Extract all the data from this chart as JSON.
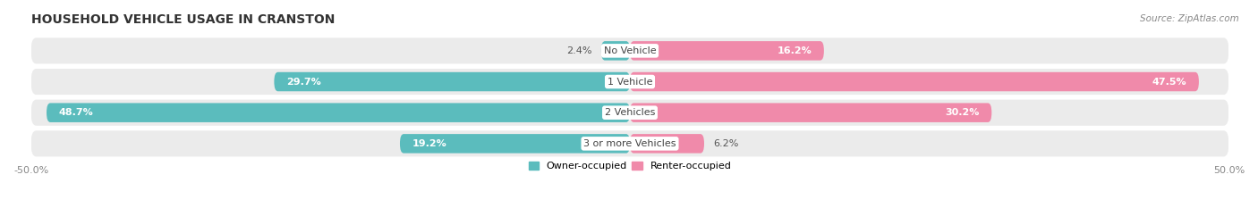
{
  "title": "HOUSEHOLD VEHICLE USAGE IN CRANSTON",
  "source": "Source: ZipAtlas.com",
  "categories": [
    "No Vehicle",
    "1 Vehicle",
    "2 Vehicles",
    "3 or more Vehicles"
  ],
  "owner_values": [
    2.4,
    29.7,
    48.7,
    19.2
  ],
  "renter_values": [
    16.2,
    47.5,
    30.2,
    6.2
  ],
  "owner_color": "#5bbcbd",
  "renter_color": "#f08aaa",
  "bar_bg_color": "#ebebeb",
  "bar_height": 0.62,
  "xlim": [
    -50,
    50
  ],
  "xtick_labels": [
    "-50.0%",
    "50.0%"
  ],
  "legend_owner": "Owner-occupied",
  "legend_renter": "Renter-occupied",
  "title_fontsize": 10,
  "source_fontsize": 7.5,
  "label_fontsize": 8,
  "category_fontsize": 8,
  "inside_label_threshold": 10
}
